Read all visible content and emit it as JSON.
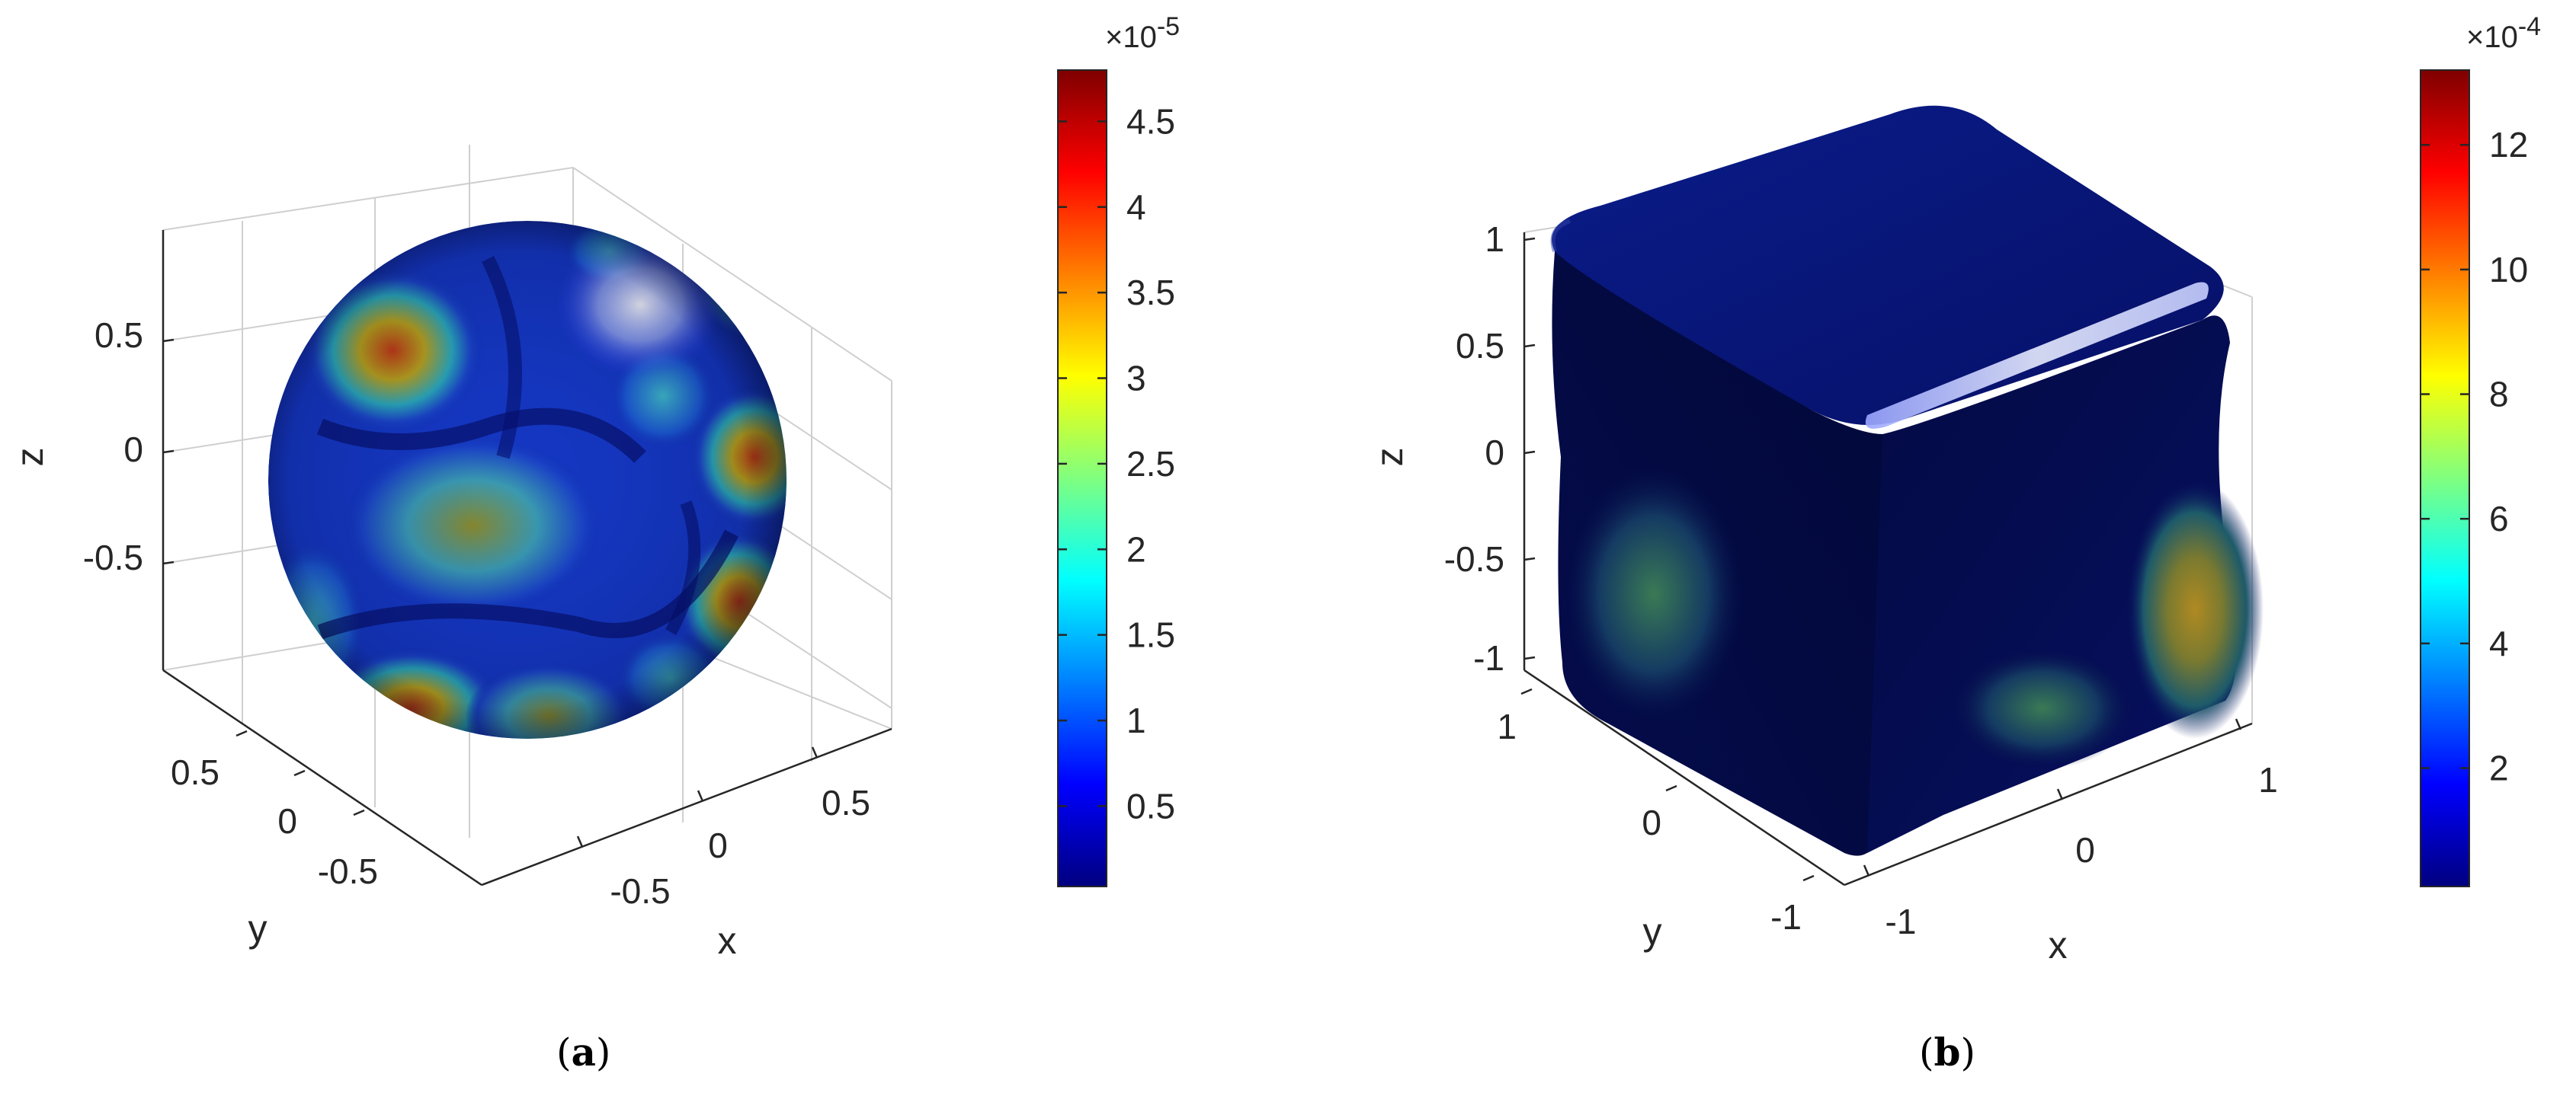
{
  "panels": [
    {
      "label": "a",
      "chart_data": {
        "type": "surface",
        "surface": "sphere",
        "colormap": "jet",
        "xlabel": "x",
        "ylabel": "y",
        "zlabel": "z",
        "x_ticks": [
          "-0.5",
          "0",
          "0.5"
        ],
        "y_ticks": [
          "-0.5",
          "0",
          "0.5"
        ],
        "z_ticks": [
          "-0.5",
          "0",
          "0.5"
        ],
        "x_tick_values": [
          -0.5,
          0,
          0.5
        ],
        "y_tick_values": [
          -0.5,
          0,
          0.5
        ],
        "z_tick_values": [
          -0.5,
          0,
          0.5
        ],
        "colorbar": {
          "exponent_base": "×10",
          "exponent": "-5",
          "ticks": [
            "0.5",
            "1",
            "1.5",
            "2",
            "2.5",
            "3",
            "3.5",
            "4",
            "4.5"
          ],
          "tick_values": [
            0.5,
            1,
            1.5,
            2,
            2.5,
            3,
            3.5,
            4,
            4.5
          ],
          "range": [
            0.03,
            4.8
          ]
        }
      }
    },
    {
      "label": "b",
      "chart_data": {
        "type": "surface",
        "surface": "rounded-cube",
        "colormap": "jet",
        "xlabel": "x",
        "ylabel": "y",
        "zlabel": "z",
        "x_ticks": [
          "-1",
          "0",
          "1"
        ],
        "y_ticks": [
          "-1",
          "0",
          "1"
        ],
        "z_ticks": [
          "-1",
          "-0.5",
          "0",
          "0.5",
          "1"
        ],
        "x_tick_values": [
          -1,
          0,
          1
        ],
        "y_tick_values": [
          -1,
          0,
          1
        ],
        "z_tick_values": [
          -1,
          -0.5,
          0,
          0.5,
          1
        ],
        "colorbar": {
          "exponent_base": "×10",
          "exponent": "-4",
          "ticks": [
            "2",
            "4",
            "6",
            "8",
            "10",
            "12"
          ],
          "tick_values": [
            2,
            4,
            6,
            8,
            10,
            12
          ],
          "range": [
            0.1,
            13.2
          ]
        }
      }
    }
  ]
}
